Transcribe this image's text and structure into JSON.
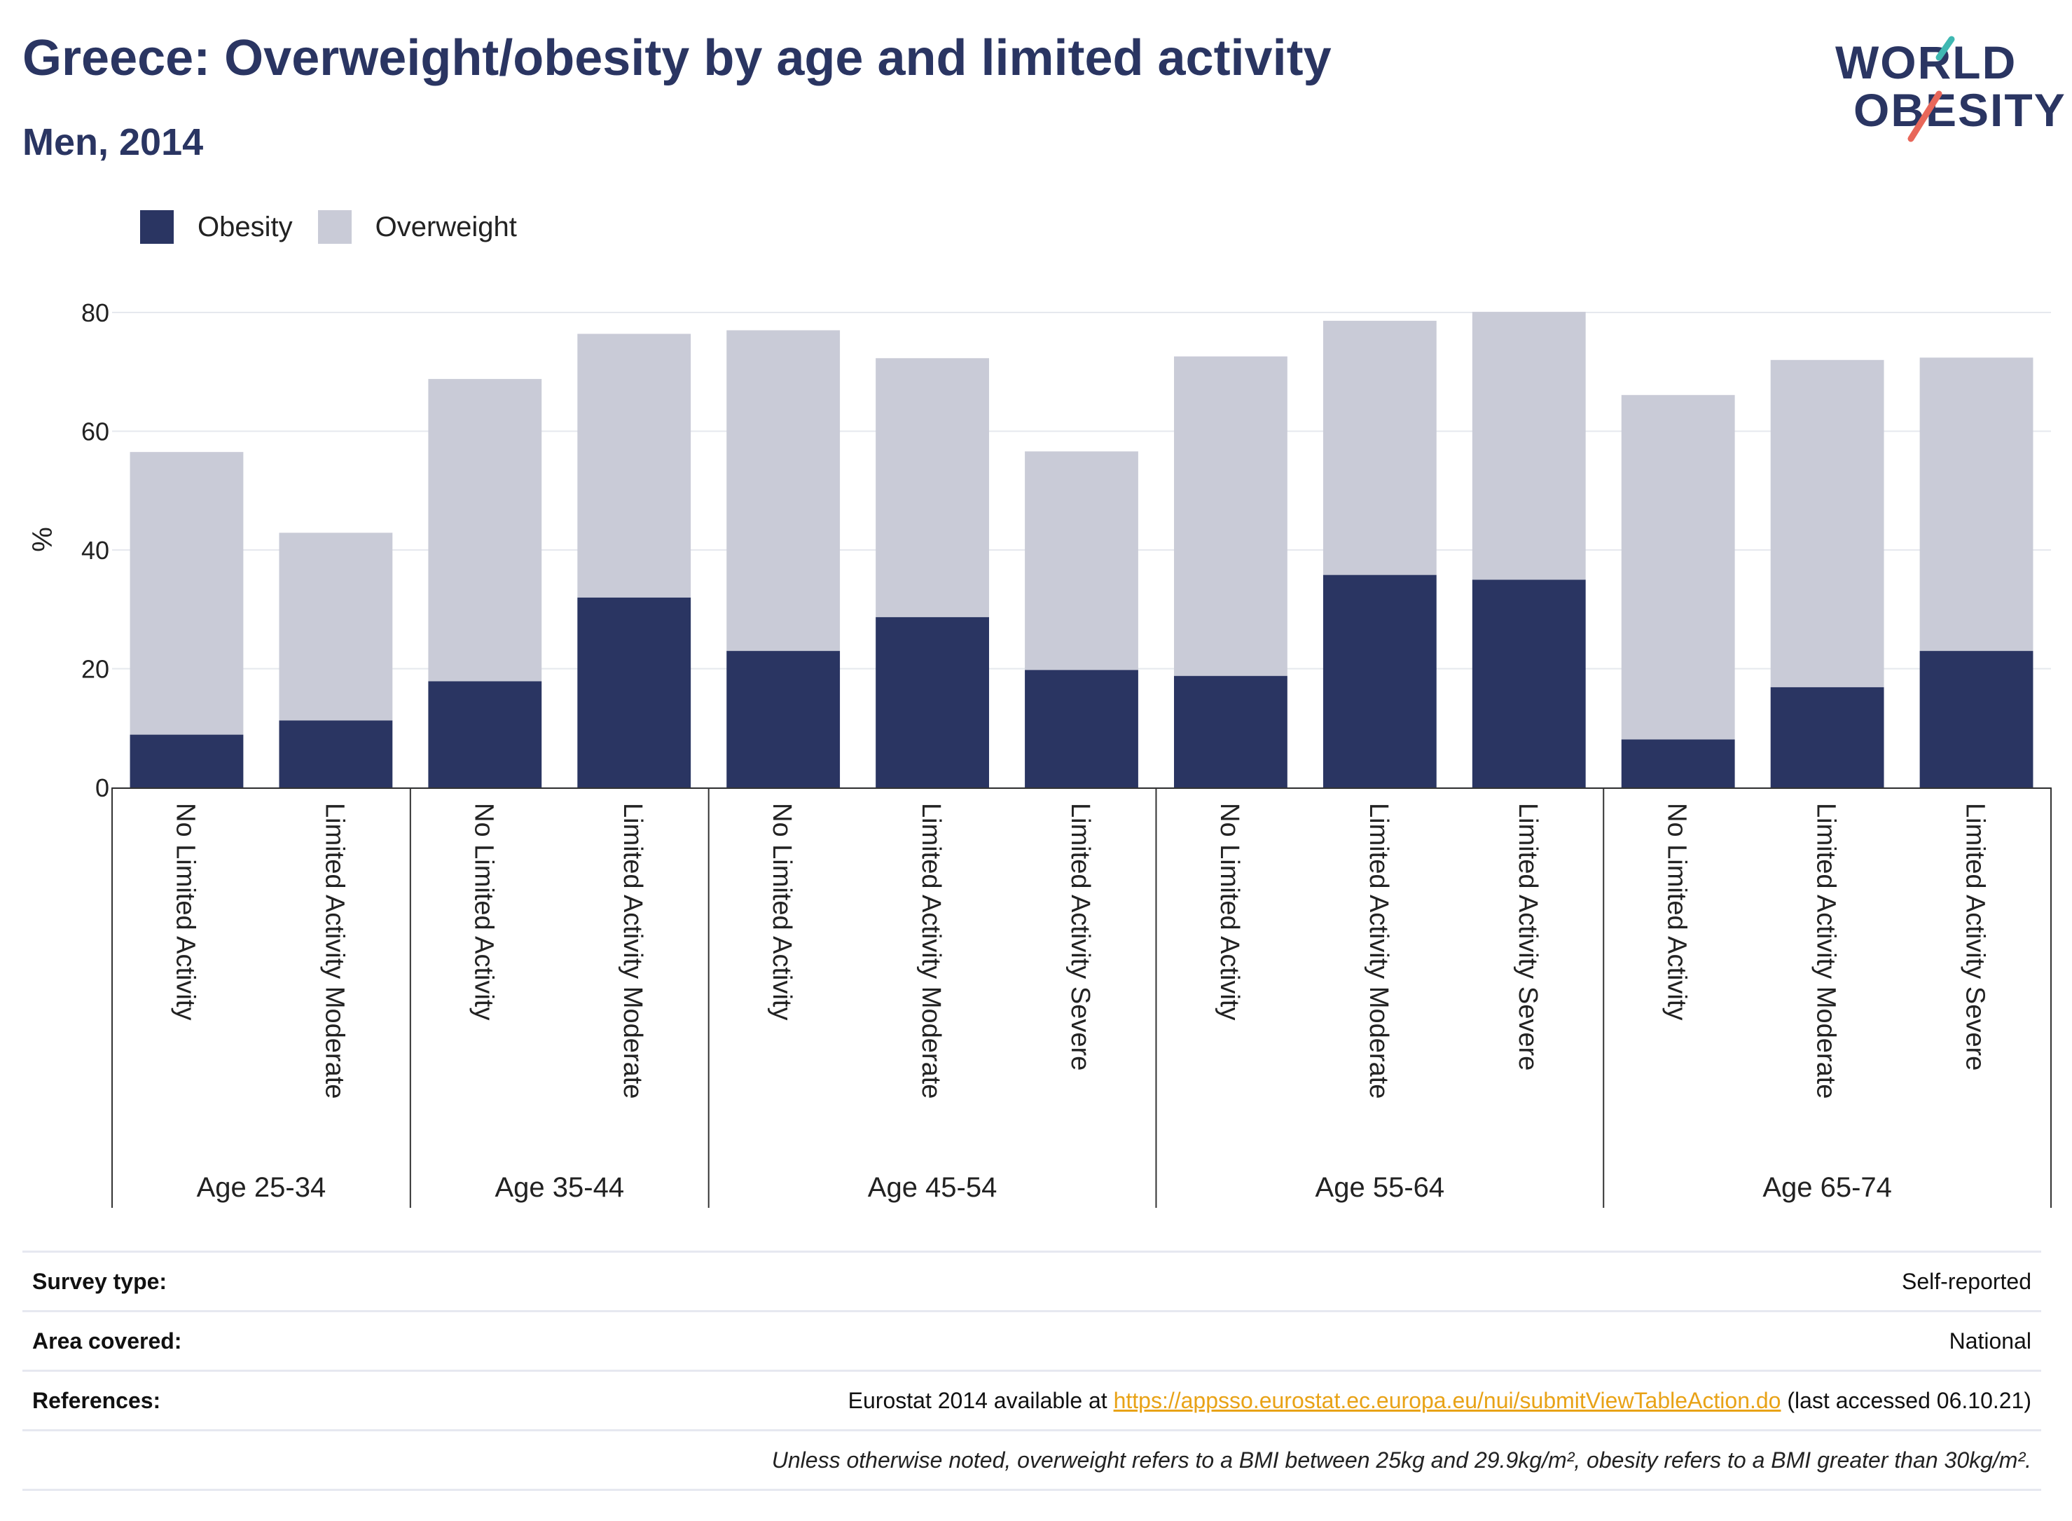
{
  "header": {
    "title": "Greece: Overweight/obesity by age and limited activity",
    "subtitle": "Men, 2014"
  },
  "logo": {
    "line1": "WORLD",
    "line2": "OBESITY"
  },
  "colors": {
    "obesity": "#2a3562",
    "overweight": "#c9cbd7",
    "accent_teal": "#3fb8b2",
    "accent_red": "#e8675a",
    "link": "#e8a216"
  },
  "chart_data": {
    "type": "bar",
    "stacked": true,
    "ylabel": "%",
    "ylim": [
      0,
      80
    ],
    "yticks": [
      0,
      20,
      40,
      60,
      80
    ],
    "legend": [
      "Obesity",
      "Overweight"
    ],
    "legend_position": "top-left",
    "groups": [
      {
        "label": "Age 25-34",
        "categories": [
          "No Limited Activity",
          "Limited Activity Moderate"
        ]
      },
      {
        "label": "Age 35-44",
        "categories": [
          "No Limited Activity",
          "Limited Activity Moderate"
        ]
      },
      {
        "label": "Age 45-54",
        "categories": [
          "No Limited Activity",
          "Limited Activity Moderate",
          "Limited Activity Severe"
        ]
      },
      {
        "label": "Age 55-64",
        "categories": [
          "No Limited Activity",
          "Limited Activity Moderate",
          "Limited Activity Severe"
        ]
      },
      {
        "label": "Age 65-74",
        "categories": [
          "No Limited Activity",
          "Limited Activity Moderate",
          "Limited Activity Severe"
        ]
      }
    ],
    "series": [
      {
        "name": "Obesity",
        "values": [
          8.9,
          11.3,
          17.9,
          32.0,
          23.0,
          28.7,
          19.8,
          18.8,
          35.8,
          35.0,
          8.1,
          16.9,
          23.0
        ]
      },
      {
        "name": "Overweight",
        "values": [
          47.6,
          31.6,
          50.9,
          44.4,
          54.0,
          43.6,
          36.8,
          53.8,
          42.8,
          45.1,
          58.0,
          55.1,
          49.4
        ]
      }
    ]
  },
  "info": {
    "survey_label": "Survey type:",
    "survey_value": "Self-reported",
    "area_label": "Area covered:",
    "area_value": "National",
    "ref_label": "References:",
    "ref_prefix": "Eurostat 2014 available at ",
    "ref_link": "https://appsso.eurostat.ec.europa.eu/nui/submitViewTableAction.do",
    "ref_suffix": " (last accessed 06.10.21)",
    "note": "Unless otherwise noted, overweight refers to a BMI between 25kg and 29.9kg/m², obesity refers to a BMI greater than 30kg/m²."
  }
}
